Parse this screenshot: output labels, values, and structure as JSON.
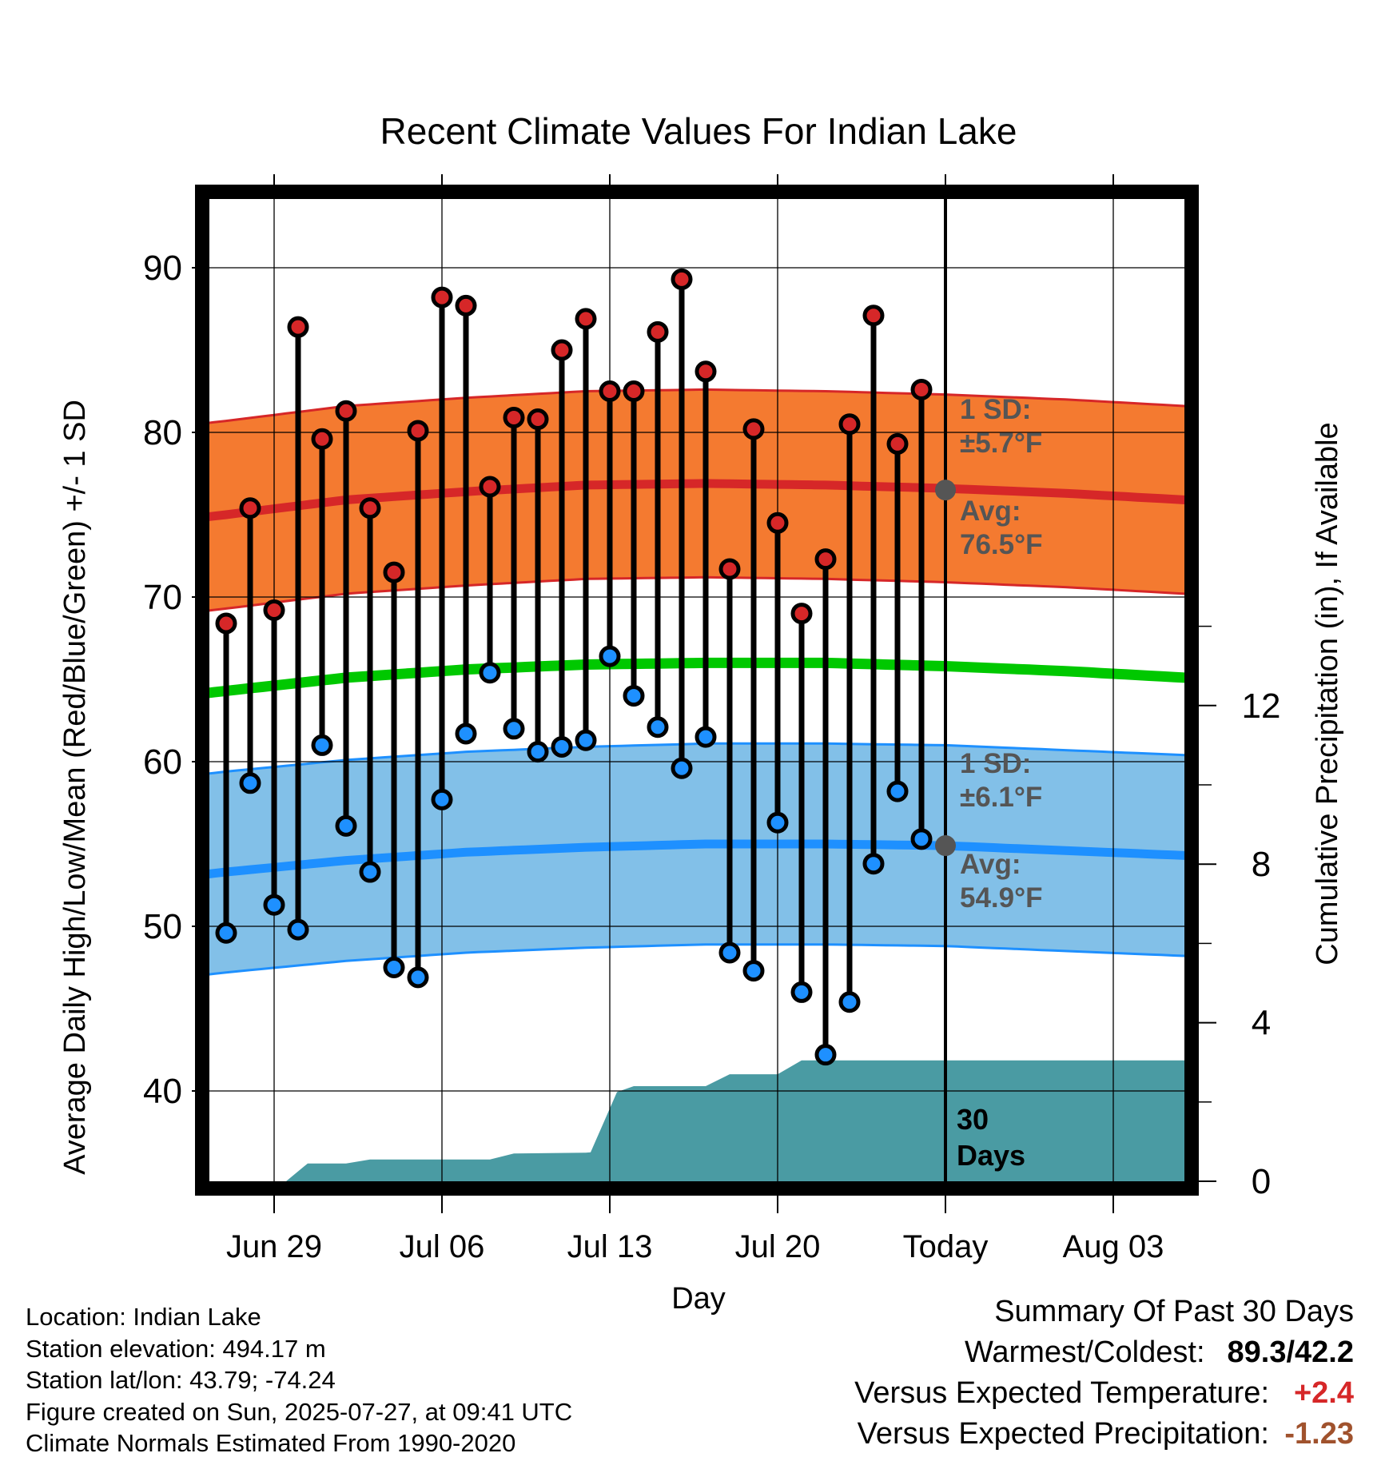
{
  "chart_data": {
    "type": "line",
    "title": "Recent Climate Values For Indian Lake",
    "xlabel": "Day",
    "ylabel": "Average Daily High/Low/Mean (Red/Blue/Green) +/- 1 SD",
    "ylabel2": "Cumulative Precipitation (in), If Available",
    "x_ticks": [
      "Jun 29",
      "Jul 06",
      "Jul 13",
      "Jul 20",
      "Today",
      "Aug 03"
    ],
    "y_ticks": [
      "40",
      "50",
      "60",
      "70",
      "80",
      "90"
    ],
    "y2_ticks": [
      "0",
      "4",
      "8",
      "12"
    ],
    "ylim": [
      34.5,
      95
    ],
    "y2lim": [
      0,
      24
    ],
    "grid": true,
    "today_marker": {
      "label_line1": "30",
      "label_line2": "Days"
    },
    "x_days": [
      -30,
      -29,
      -28,
      -27,
      -26,
      -25,
      -24,
      -23,
      -22,
      -21,
      -20,
      -19,
      -18,
      -17,
      -16,
      -15,
      -14,
      -13,
      -12,
      -11,
      -10,
      -9,
      -8,
      -7,
      -6,
      -5,
      -4,
      -3,
      -2,
      -1
    ],
    "series": [
      {
        "name": "Daily High",
        "color": "#d62728",
        "values": [
          68.4,
          75.4,
          69.2,
          86.4,
          79.6,
          81.3,
          75.4,
          71.5,
          80.1,
          88.2,
          87.7,
          76.7,
          80.9,
          80.8,
          85.0,
          86.9,
          82.5,
          82.5,
          86.1,
          89.3,
          83.7,
          71.7,
          80.2,
          74.5,
          69.0,
          72.3,
          80.5,
          87.1,
          79.3,
          82.6
        ]
      },
      {
        "name": "Daily Low",
        "color": "#1e90ff",
        "values": [
          49.6,
          58.7,
          51.3,
          49.8,
          61.0,
          56.1,
          53.3,
          47.5,
          46.9,
          57.7,
          61.7,
          65.4,
          62.0,
          60.6,
          60.9,
          61.3,
          66.4,
          64.0,
          62.1,
          59.6,
          61.5,
          48.4,
          47.3,
          56.3,
          46.0,
          42.2,
          45.4,
          53.8,
          58.2,
          55.3
        ]
      }
    ],
    "normals": {
      "days": [
        -33,
        -30,
        -25,
        -20,
        -15,
        -10,
        -5,
        0,
        5,
        10
      ],
      "avg_high": [
        74.5,
        75.0,
        75.9,
        76.4,
        76.8,
        76.9,
        76.8,
        76.6,
        76.3,
        75.9
      ],
      "avg_low": [
        52.8,
        53.3,
        54.0,
        54.5,
        54.8,
        55.0,
        55.0,
        54.9,
        54.6,
        54.3
      ],
      "avg_mean": [
        63.8,
        64.3,
        65.1,
        65.6,
        65.9,
        66.0,
        66.0,
        65.8,
        65.5,
        65.1
      ],
      "high_sd": 5.7,
      "low_sd": 6.1,
      "high_color": "#d62728",
      "high_band_color": "#f47a30",
      "low_color": "#1e90ff",
      "low_band_color": "#82c0e8",
      "mean_color": "#00c800",
      "today_high": 76.5,
      "today_low": 54.9
    },
    "precipitation": {
      "color": "#4a9ba3",
      "days": [
        -33,
        -27.5,
        -26.6,
        -26,
        -25,
        -24,
        -22,
        -19,
        -18,
        -15,
        -14.8,
        -13.7,
        -13,
        -11,
        -10,
        -9,
        -8.0,
        -7,
        -6,
        -5,
        -1,
        10
      ],
      "cumulative": [
        0,
        0,
        0.45,
        0.45,
        0.45,
        0.55,
        0.55,
        0.55,
        0.7,
        0.72,
        0.73,
        2.25,
        2.4,
        2.4,
        2.4,
        2.7,
        2.7,
        2.7,
        3.05,
        3.05,
        3.05,
        3.05
      ]
    }
  },
  "annotations": {
    "high_sd_line1": "1 SD:",
    "high_sd_line2": "±5.7°F",
    "high_avg_line1": "Avg:",
    "high_avg_line2": "76.5°F",
    "low_sd_line1": "1 SD:",
    "low_sd_line2": "±6.1°F",
    "low_avg_line1": "Avg:",
    "low_avg_line2": "54.9°F"
  },
  "footer": {
    "location": "Location: Indian Lake",
    "elevation": "Station elevation: 494.17 m",
    "latlon": "Station lat/lon: 43.79; -74.24",
    "created": "Figure created on Sun, 2025-07-27, at 09:41 UTC",
    "normals": "Climate Normals Estimated From 1990-2020"
  },
  "summary": {
    "title": "Summary Of Past 30 Days",
    "warm_cold_label": "Warmest/Coldest:",
    "warm_cold_value": "89.3/42.2",
    "temp_label": "Versus Expected Temperature:",
    "temp_value": "+2.4",
    "temp_color": "#d62728",
    "precip_label": "Versus Expected Precipitation:",
    "precip_value": "-1.23",
    "precip_color": "#a0522d"
  }
}
